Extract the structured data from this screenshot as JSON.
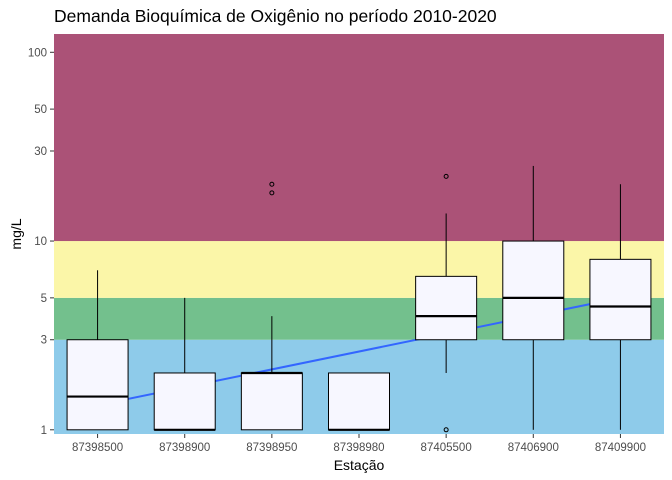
{
  "chart_data": {
    "type": "boxplot",
    "title": "Demanda Bioquímica de Oxigênio no período 2010-2020",
    "xlabel": "Estação",
    "ylabel": "mg/L",
    "y_scale": "log",
    "ylim": [
      0.95,
      125
    ],
    "y_ticks": [
      1,
      3,
      5,
      10,
      30,
      50,
      100
    ],
    "categories": [
      "87398500",
      "87398900",
      "87398950",
      "87398980",
      "87405500",
      "87406900",
      "87409900"
    ],
    "background_bands": [
      {
        "from": 0.95,
        "to": 3,
        "color": "#8ecbea"
      },
      {
        "from": 3,
        "to": 5,
        "color": "#73c08d"
      },
      {
        "from": 5,
        "to": 10,
        "color": "#fbf6a8"
      },
      {
        "from": 10,
        "to": 125,
        "color": "#ab5277"
      }
    ],
    "boxes": [
      {
        "whisker_low": 1,
        "q1": 1,
        "median": 1.5,
        "q3": 3,
        "whisker_high": 7,
        "outliers": []
      },
      {
        "whisker_low": 1,
        "q1": 1,
        "median": 1,
        "q3": 2,
        "whisker_high": 5,
        "outliers": []
      },
      {
        "whisker_low": 1,
        "q1": 1,
        "median": 2,
        "q3": 2,
        "whisker_high": 4,
        "outliers": [
          18,
          20
        ]
      },
      {
        "whisker_low": 1,
        "q1": 1,
        "median": 1,
        "q3": 2,
        "whisker_high": 2,
        "outliers": []
      },
      {
        "whisker_low": 2,
        "q1": 3,
        "median": 4,
        "q3": 6.5,
        "whisker_high": 14,
        "outliers": [
          1,
          22
        ]
      },
      {
        "whisker_low": 1,
        "q1": 3,
        "median": 5,
        "q3": 10,
        "whisker_high": 25,
        "outliers": []
      },
      {
        "whisker_low": 1,
        "q1": 3,
        "median": 4.5,
        "q3": 8,
        "whisker_high": 20,
        "outliers": []
      }
    ],
    "trend_line": {
      "from": {
        "category": "87398500",
        "y": 1.35
      },
      "to": {
        "category": "87409900",
        "y": 5
      },
      "color": "#3366ff"
    },
    "box_fill": "#f7f7ff",
    "grid": false,
    "legend": "none"
  }
}
